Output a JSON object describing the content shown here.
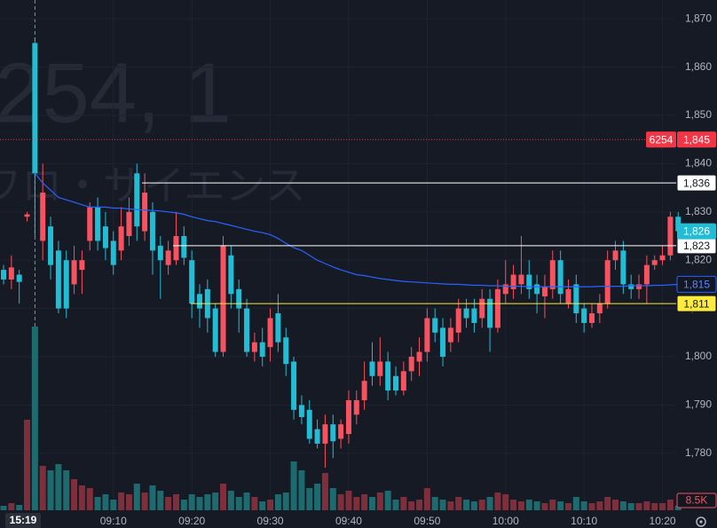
{
  "chart_data": {
    "type": "candlestick",
    "watermark": {
      "symbol": "254, 1",
      "name": "ワロ・サイエンス"
    },
    "crosshair_time": "15:19",
    "categories": [
      null,
      null,
      null,
      null,
      null,
      null,
      null,
      null,
      null,
      null,
      null,
      null,
      null,
      null,
      "09:10",
      null,
      null,
      null,
      null,
      null,
      null,
      null,
      null,
      null,
      "09:20",
      null,
      null,
      null,
      null,
      null,
      null,
      null,
      null,
      null,
      "09:30",
      null,
      null,
      null,
      null,
      null,
      null,
      null,
      null,
      null,
      "09:40",
      null,
      null,
      null,
      null,
      null,
      null,
      null,
      null,
      null,
      "09:50",
      null,
      null,
      null,
      null,
      null,
      null,
      null,
      null,
      null,
      "10:00",
      null,
      null,
      null,
      null,
      null,
      null,
      null,
      null,
      null,
      "10:10",
      null,
      null,
      null,
      null,
      null,
      null,
      null,
      null,
      null,
      "10:20",
      null,
      null
    ],
    "open": [
      1818,
      1816,
      1817,
      1829,
      1865,
      1824,
      1827,
      1822,
      1820,
      1815,
      1818,
      1824,
      1831,
      1827,
      1824,
      1822,
      1825,
      1838,
      1826,
      1830,
      1823,
      1819,
      1820,
      1825,
      1820,
      1813,
      1814,
      1810,
      1801,
      1821,
      1814,
      1810,
      1801,
      1803,
      1802,
      1809,
      1804,
      1799,
      1790,
      1789,
      1785,
      1782,
      1786,
      1783,
      1784,
      1788,
      1791,
      1799,
      1796,
      1799,
      1796,
      1793,
      1797,
      1799,
      1801,
      1808,
      1806,
      1803,
      1805,
      1810,
      1810,
      1808,
      1812,
      1806,
      1813,
      1814,
      1815,
      1817,
      1815,
      1812.5,
      1814,
      1820,
      1811,
      1815,
      1810,
      1807,
      1809,
      1811,
      1820,
      1822,
      1815,
      1814,
      1815,
      1819,
      1820,
      1821,
      1829
    ],
    "high": [
      1819,
      1821,
      1818,
      1830,
      1866,
      1840,
      1829,
      1824,
      1822,
      1823,
      1822,
      1832,
      1833,
      1830,
      1826,
      1831,
      1833,
      1840,
      1838,
      1832,
      1825,
      1824,
      1830,
      1827,
      1822,
      1815,
      1816,
      1811,
      1825,
      1823,
      1816,
      1812,
      1805,
      1806,
      1810,
      1813,
      1806,
      1800,
      1792,
      1791,
      1787,
      1788,
      1788,
      1787,
      1793,
      1793,
      1799,
      1803,
      1804,
      1801,
      1798,
      1799,
      1802,
      1804,
      1810,
      1810,
      1808,
      1808,
      1812,
      1812,
      1812,
      1814,
      1814,
      1816,
      1820,
      1819,
      1825,
      1820,
      1817,
      1817,
      1822,
      1822,
      1816,
      1817,
      1811,
      1811,
      1813,
      1822,
      1824,
      1824,
      1817,
      1817,
      1821,
      1821,
      1823,
      1830,
      1830
    ],
    "low": [
      1815,
      1814,
      1811,
      1828,
      1825,
      1820,
      1816,
      1809,
      1808,
      1813,
      1813,
      1822,
      1822,
      1820,
      1817,
      1820,
      1823,
      1824,
      1824,
      1817,
      1812,
      1817,
      1819,
      1819,
      1808,
      1806,
      1805,
      1800,
      1800,
      1810,
      1805,
      1800,
      1799,
      1798,
      1799,
      1801,
      1796,
      1787,
      1786,
      1782,
      1781,
      1777,
      1779,
      1781,
      1782,
      1786,
      1789,
      1794,
      1794,
      1791,
      1792,
      1792,
      1795,
      1796,
      1799,
      1803,
      1798,
      1801,
      1803,
      1806,
      1805,
      1806,
      1801,
      1805,
      1811,
      1812,
      1813,
      1812,
      1809,
      1808,
      1812,
      1811,
      1810,
      1807,
      1805,
      1806,
      1807,
      1810,
      1818,
      1813,
      1812,
      1812,
      1811,
      1818,
      1819,
      1820,
      1825
    ],
    "close": [
      1816,
      1818.5,
      1815.5,
      1829.5,
      1838,
      1834,
      1819,
      1810,
      1810,
      1820,
      1820,
      1831,
      1824,
      1822.5,
      1819,
      1827,
      1830,
      1827,
      1834,
      1822,
      1820,
      1822,
      1825,
      1820.5,
      1811,
      1810,
      1808,
      1801,
      1823,
      1813,
      1810,
      1801,
      1803,
      1800,
      1808,
      1803,
      1798.5,
      1789,
      1787.5,
      1783,
      1782,
      1786,
      1782.5,
      1786,
      1791,
      1791,
      1795,
      1796,
      1799,
      1793,
      1793,
      1797,
      1800,
      1801,
      1808,
      1805,
      1800,
      1806,
      1810,
      1808,
      1807,
      1812,
      1806,
      1814,
      1815,
      1817,
      1817,
      1814,
      1813,
      1814.5,
      1820,
      1813,
      1814,
      1809,
      1807,
      1809,
      1811,
      1820,
      1822,
      1815,
      1814,
      1815,
      1819,
      1820,
      1821,
      1829,
      1826
    ],
    "up_color": "#f7525f",
    "down_color": "#22bcd4",
    "volume": {
      "up_color": "#7e2f3b",
      "down_color": "#1e6b6f",
      "values": [
        8500,
        13600,
        10200,
        173400,
        351900,
        85000,
        76500,
        88400,
        76500,
        59500,
        47600,
        42500,
        25500,
        30600,
        20400,
        34000,
        30600,
        51000,
        34000,
        47600,
        37400,
        25500,
        30600,
        20400,
        30600,
        25500,
        30600,
        34000,
        51000,
        37400,
        25500,
        34000,
        25500,
        17000,
        20400,
        30600,
        34000,
        93500,
        76500,
        42500,
        51000,
        71400,
        42500,
        30600,
        37400,
        25500,
        30600,
        25500,
        34000,
        37400,
        20400,
        25500,
        17000,
        20400,
        42500,
        25500,
        20400,
        17000,
        25500,
        20400,
        17000,
        20400,
        25500,
        34000,
        30600,
        20400,
        17000,
        20400,
        17000,
        13600,
        20400,
        17000,
        13600,
        25500,
        17000,
        13600,
        17000,
        25500,
        20400,
        17000,
        13600,
        13600,
        17000,
        13600,
        13600,
        20400,
        8500
      ],
      "last_label": "8.5K"
    },
    "ma": {
      "color": "#2962ff",
      "values": [
        null,
        null,
        null,
        null,
        1838,
        1836,
        1834.5,
        1833,
        1832.5,
        1832,
        1831.5,
        1831,
        1831,
        1831,
        1830.8,
        1830.8,
        1830.6,
        1830.5,
        1830.4,
        1830.3,
        1830.2,
        1830,
        1829.8,
        1829.5,
        1829,
        1828.6,
        1828.2,
        1828,
        1827.6,
        1827.2,
        1826.8,
        1826.4,
        1826,
        1825.7,
        1825.3,
        1824.5,
        1823.5,
        1822.6,
        1822,
        1821,
        1820,
        1819.3,
        1818.6,
        1818,
        1817.5,
        1817,
        1816.8,
        1816.5,
        1816.2,
        1816,
        1815.8,
        1815.6,
        1815.5,
        1815.4,
        1815.3,
        1815.2,
        1815.1,
        1815,
        1815,
        1814.9,
        1814.8,
        1814.8,
        1814.7,
        1814.7,
        1814.6,
        1814.6,
        1814.6,
        1814.5,
        1814.5,
        1814.5,
        1814.5,
        1814.5,
        1814.5,
        1814.5,
        1814.5,
        1814.5,
        1814.6,
        1814.6,
        1814.6,
        1814.6,
        1814.7,
        1814.7,
        1814.7,
        1814.8,
        1814.8,
        1814.9,
        1815
      ],
      "label": {
        "value": 1815,
        "label": "1,815"
      }
    },
    "last_price": {
      "value": 1826,
      "label": "1,826"
    },
    "prev_close": {
      "code": "6254",
      "value": 1845,
      "label": "1,845",
      "color": "#f23645"
    },
    "hlines": [
      {
        "value": 1836,
        "label": "1,836",
        "color": "#ffffff"
      },
      {
        "value": 1823,
        "label": "1,823",
        "color": "#ffffff"
      },
      {
        "value": 1811,
        "label": "1,811",
        "color": "#ffeb3b"
      }
    ],
    "ylim": [
      1768.2,
      1873.9
    ],
    "yticks": [
      {
        "value": 1780,
        "label": "1,780"
      },
      {
        "value": 1790,
        "label": "1,790"
      },
      {
        "value": 1800,
        "label": "1,800"
      },
      {
        "value": 1810,
        "label": "1,810"
      },
      {
        "value": 1820,
        "label": "1,820"
      },
      {
        "value": 1830,
        "label": "1,830"
      },
      {
        "value": 1840,
        "label": "1,840"
      },
      {
        "value": 1850,
        "label": "1,850"
      },
      {
        "value": 1860,
        "label": "1,860"
      },
      {
        "value": 1870,
        "label": "1,870"
      }
    ],
    "grid": true
  }
}
